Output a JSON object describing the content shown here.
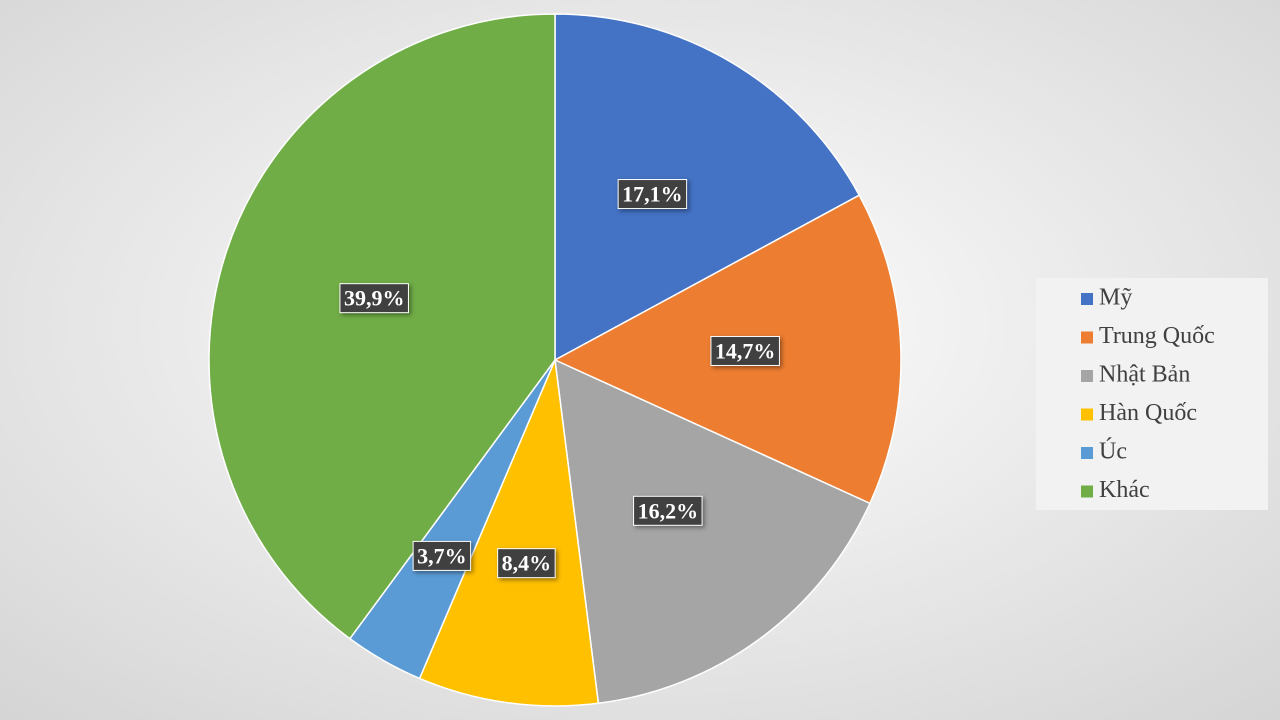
{
  "chart_data": {
    "type": "pie",
    "categories": [
      "Mỹ",
      "Trung Quốc",
      "Nhật Bản",
      "Hàn Quốc",
      "Úc",
      "Khác"
    ],
    "values": [
      17.1,
      14.7,
      16.2,
      8.4,
      3.7,
      39.9
    ],
    "value_labels": [
      "17,1%",
      "14,7%",
      "16,2%",
      "8,4%",
      "3,7%",
      "39,9%"
    ],
    "colors": [
      "#4472c4",
      "#ed7d31",
      "#a5a5a5",
      "#ffc000",
      "#5b9bd5",
      "#70ad47"
    ],
    "legend": "right"
  }
}
